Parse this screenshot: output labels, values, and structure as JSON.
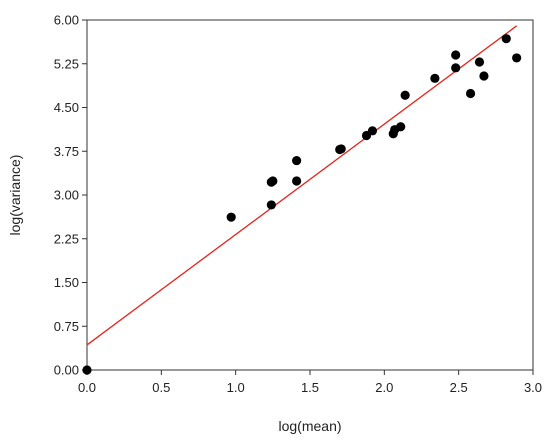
{
  "chart_data": {
    "type": "scatter",
    "title": "",
    "xlabel": "log(mean)",
    "ylabel": "log(variance)",
    "xlim": [
      0.0,
      3.0
    ],
    "ylim": [
      0.0,
      6.0
    ],
    "x_ticks": [
      0.0,
      0.5,
      1.0,
      1.5,
      2.0,
      2.5,
      3.0
    ],
    "y_ticks": [
      0.0,
      0.75,
      1.5,
      2.25,
      3.0,
      3.75,
      4.5,
      5.25,
      6.0
    ],
    "x_tick_labels": [
      "0.0",
      "0.5",
      "1.0",
      "1.5",
      "2.0",
      "2.5",
      "3.0"
    ],
    "y_tick_labels": [
      "0.00",
      "0.75",
      "1.50",
      "2.25",
      "3.00",
      "3.75",
      "4.50",
      "5.25",
      "6.00"
    ],
    "grid": false,
    "point_color": "#000000",
    "fit_line_color": "#e8221b",
    "points": [
      {
        "x": 0.0,
        "y": 0.0
      },
      {
        "x": 0.97,
        "y": 2.62
      },
      {
        "x": 1.24,
        "y": 2.83
      },
      {
        "x": 1.24,
        "y": 3.22
      },
      {
        "x": 1.25,
        "y": 3.24
      },
      {
        "x": 1.41,
        "y": 3.24
      },
      {
        "x": 1.41,
        "y": 3.59
      },
      {
        "x": 1.7,
        "y": 3.78
      },
      {
        "x": 1.71,
        "y": 3.79
      },
      {
        "x": 1.88,
        "y": 4.02
      },
      {
        "x": 1.92,
        "y": 4.1
      },
      {
        "x": 2.06,
        "y": 4.05
      },
      {
        "x": 2.07,
        "y": 4.12
      },
      {
        "x": 2.11,
        "y": 4.17
      },
      {
        "x": 2.14,
        "y": 4.71
      },
      {
        "x": 2.34,
        "y": 5.0
      },
      {
        "x": 2.48,
        "y": 5.18
      },
      {
        "x": 2.48,
        "y": 5.4
      },
      {
        "x": 2.58,
        "y": 4.74
      },
      {
        "x": 2.64,
        "y": 5.28
      },
      {
        "x": 2.67,
        "y": 5.04
      },
      {
        "x": 2.82,
        "y": 5.68
      },
      {
        "x": 2.89,
        "y": 5.35
      }
    ],
    "fit_line": {
      "x": [
        0.0,
        2.89
      ],
      "y": [
        0.43,
        5.9
      ]
    }
  }
}
